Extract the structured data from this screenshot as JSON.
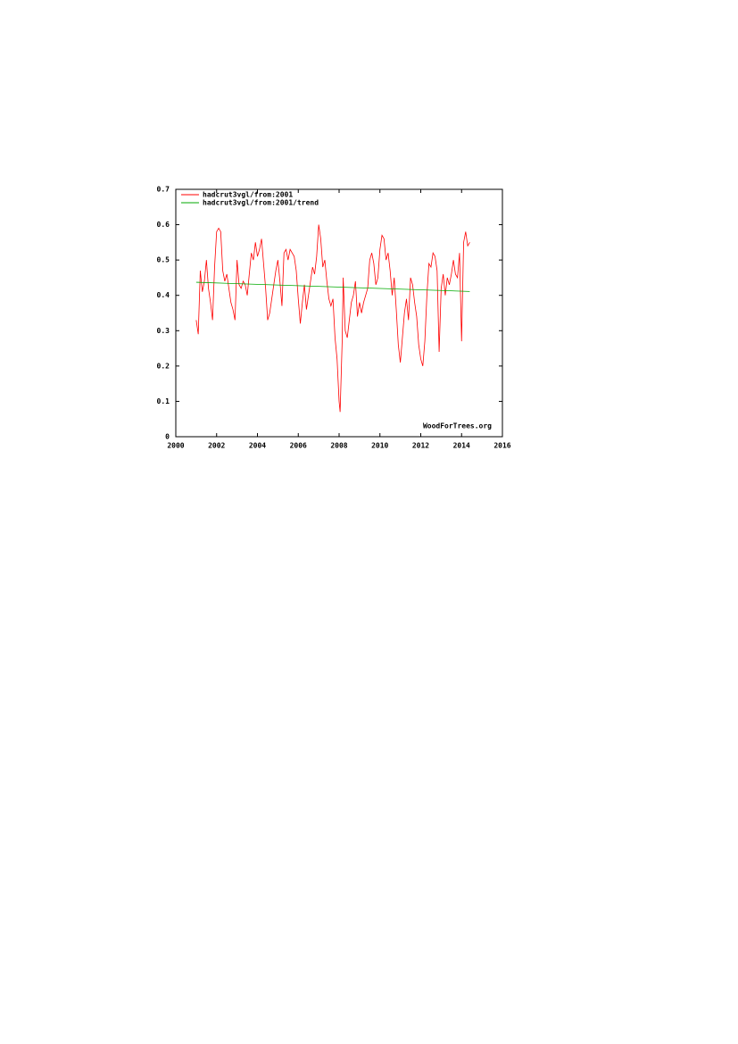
{
  "chart_data": {
    "type": "line",
    "annotation": "WoodForTrees.org",
    "xlim": [
      2000,
      2016
    ],
    "xticks": [
      2000,
      2002,
      2004,
      2006,
      2008,
      2010,
      2012,
      2014,
      2016
    ],
    "ylim": [
      0,
      0.7
    ],
    "yticks": [
      0,
      0.1,
      0.2,
      0.3,
      0.4,
      0.5,
      0.6,
      0.7
    ],
    "legend": "upper left",
    "series": [
      {
        "name": "hadcrut3vgl/from:2001",
        "color": "#ff0000",
        "x": [
          2001.0,
          2001.1,
          2001.2,
          2001.3,
          2001.4,
          2001.5,
          2001.6,
          2001.7,
          2001.8,
          2001.9,
          2002.0,
          2002.1,
          2002.2,
          2002.3,
          2002.4,
          2002.5,
          2002.6,
          2002.7,
          2002.8,
          2002.9,
          2003.0,
          2003.1,
          2003.2,
          2003.3,
          2003.4,
          2003.5,
          2003.6,
          2003.7,
          2003.8,
          2003.9,
          2004.0,
          2004.1,
          2004.2,
          2004.3,
          2004.4,
          2004.5,
          2004.6,
          2004.7,
          2004.8,
          2004.9,
          2005.0,
          2005.1,
          2005.2,
          2005.3,
          2005.4,
          2005.5,
          2005.6,
          2005.7,
          2005.8,
          2005.9,
          2006.0,
          2006.1,
          2006.2,
          2006.3,
          2006.4,
          2006.5,
          2006.6,
          2006.7,
          2006.8,
          2006.9,
          2007.0,
          2007.1,
          2007.2,
          2007.3,
          2007.4,
          2007.5,
          2007.6,
          2007.7,
          2007.8,
          2007.9,
          2008.0,
          2008.05,
          2008.15,
          2008.2,
          2008.3,
          2008.4,
          2008.5,
          2008.6,
          2008.7,
          2008.8,
          2008.9,
          2009.0,
          2009.1,
          2009.2,
          2009.3,
          2009.4,
          2009.5,
          2009.6,
          2009.7,
          2009.8,
          2009.9,
          2010.0,
          2010.1,
          2010.2,
          2010.3,
          2010.4,
          2010.5,
          2010.6,
          2010.7,
          2010.8,
          2010.9,
          2011.0,
          2011.1,
          2011.2,
          2011.3,
          2011.4,
          2011.5,
          2011.6,
          2011.7,
          2011.8,
          2011.9,
          2012.0,
          2012.1,
          2012.2,
          2012.3,
          2012.4,
          2012.5,
          2012.6,
          2012.7,
          2012.8,
          2012.9,
          2013.0,
          2013.1,
          2013.2,
          2013.3,
          2013.4,
          2013.5,
          2013.6,
          2013.7,
          2013.8,
          2013.9,
          2014.0,
          2014.1,
          2014.2,
          2014.3,
          2014.4
        ],
        "values": [
          0.33,
          0.29,
          0.47,
          0.41,
          0.44,
          0.5,
          0.42,
          0.38,
          0.33,
          0.48,
          0.58,
          0.59,
          0.58,
          0.47,
          0.44,
          0.46,
          0.42,
          0.38,
          0.36,
          0.33,
          0.5,
          0.43,
          0.42,
          0.44,
          0.43,
          0.4,
          0.46,
          0.52,
          0.5,
          0.55,
          0.51,
          0.53,
          0.56,
          0.49,
          0.42,
          0.33,
          0.35,
          0.39,
          0.43,
          0.47,
          0.5,
          0.44,
          0.37,
          0.52,
          0.53,
          0.5,
          0.53,
          0.52,
          0.51,
          0.47,
          0.39,
          0.32,
          0.38,
          0.43,
          0.36,
          0.4,
          0.44,
          0.48,
          0.46,
          0.51,
          0.6,
          0.56,
          0.48,
          0.5,
          0.44,
          0.39,
          0.37,
          0.39,
          0.28,
          0.22,
          0.1,
          0.07,
          0.27,
          0.45,
          0.3,
          0.28,
          0.33,
          0.38,
          0.4,
          0.44,
          0.34,
          0.38,
          0.35,
          0.38,
          0.4,
          0.42,
          0.5,
          0.52,
          0.49,
          0.43,
          0.45,
          0.53,
          0.57,
          0.56,
          0.5,
          0.52,
          0.47,
          0.4,
          0.45,
          0.36,
          0.26,
          0.21,
          0.28,
          0.35,
          0.39,
          0.33,
          0.45,
          0.43,
          0.38,
          0.34,
          0.26,
          0.22,
          0.2,
          0.27,
          0.4,
          0.49,
          0.48,
          0.52,
          0.51,
          0.47,
          0.24,
          0.42,
          0.46,
          0.4,
          0.45,
          0.43,
          0.46,
          0.5,
          0.46,
          0.45,
          0.52,
          0.27,
          0.55,
          0.58,
          0.54,
          0.55
        ]
      },
      {
        "name": "hadcrut3vgl/from:2001/trend",
        "color": "#00aa00",
        "x": [
          2001.0,
          2014.4
        ],
        "values": [
          0.437,
          0.411
        ]
      }
    ]
  }
}
